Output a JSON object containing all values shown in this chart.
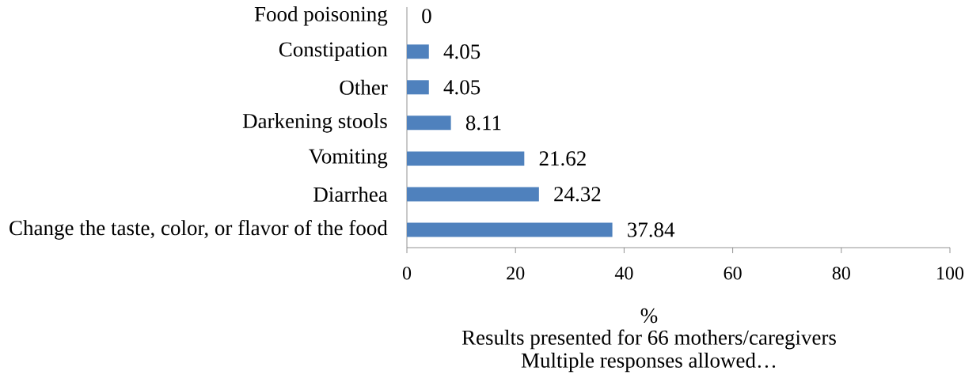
{
  "chart_data": {
    "type": "bar",
    "orientation": "horizontal",
    "categories": [
      "Food poisoning",
      "Constipation",
      "Other",
      "Darkening stools",
      "Vomiting",
      "Diarrhea",
      "Change the taste, color, or flavor of the food"
    ],
    "values": [
      0,
      4.05,
      4.05,
      8.11,
      21.62,
      24.32,
      37.84
    ],
    "color": "#4f81bd",
    "xlim": [
      0,
      100
    ],
    "xticks": [
      0,
      20,
      40,
      60,
      80,
      100
    ],
    "xlabel": "%",
    "annotations": [
      "Results presented for 66 mothers/caregivers",
      "Multiple responses allowed…"
    ],
    "data_labels": true
  }
}
